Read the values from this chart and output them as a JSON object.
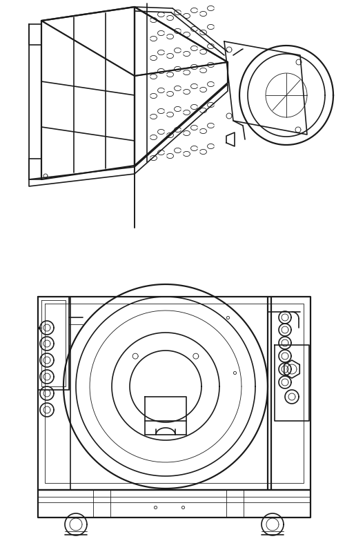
{
  "bg_color": "#ffffff",
  "line_color": "#1a1a1a",
  "lw": 1.2,
  "lw_thin": 0.6,
  "lw_thick": 1.6,
  "fig_width": 5.0,
  "fig_height": 8.0,
  "dpi": 100
}
